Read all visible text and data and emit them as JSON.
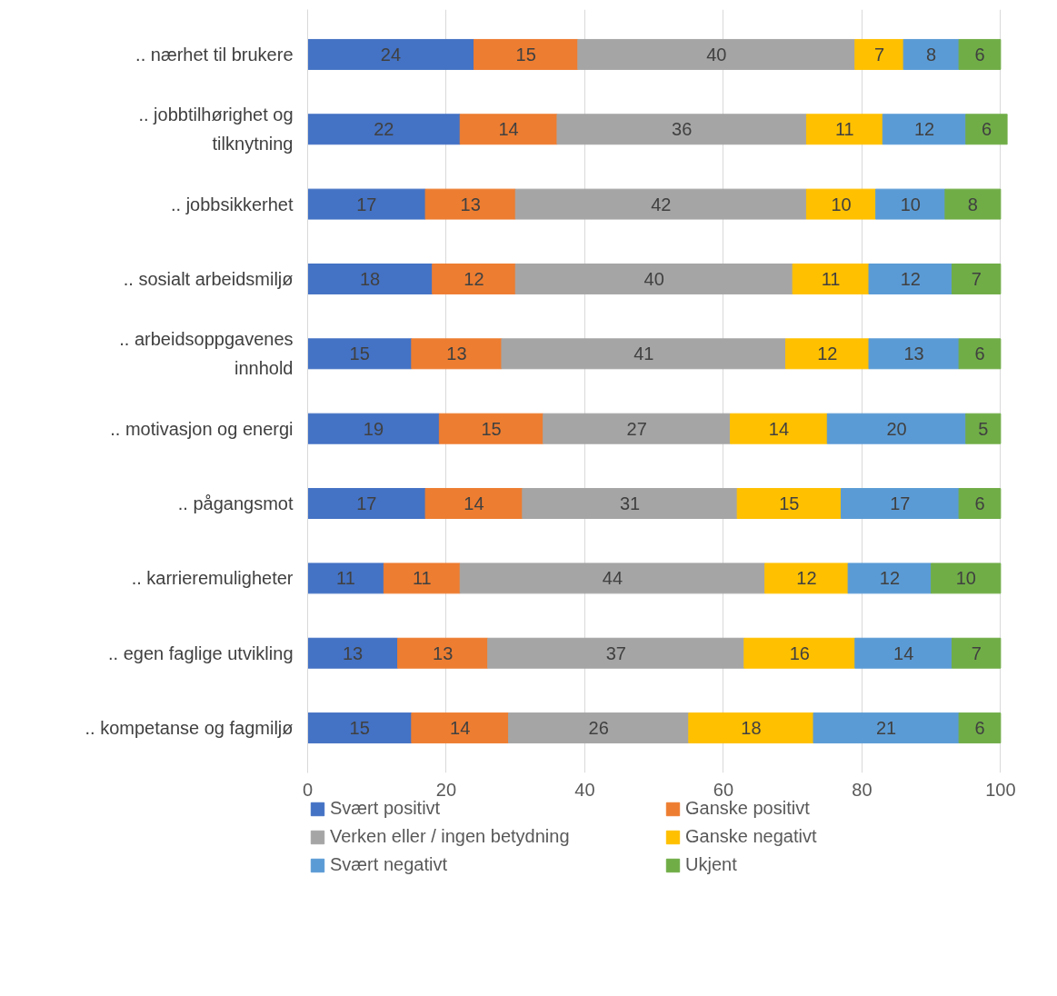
{
  "chart_data": {
    "type": "bar",
    "orientation": "horizontal",
    "stacked": true,
    "data_labels": true,
    "categories": [
      ".. nærhet til brukere",
      ".. jobbtilhørighet og\ntilknytning",
      ".. jobbsikkerhet",
      ".. sosialt arbeidsmiljø",
      ".. arbeidsoppgavenes\ninnhold",
      ".. motivasjon og energi",
      ".. pågangsmot",
      ".. karrieremuligheter",
      ".. egen faglige utvikling",
      ".. kompetanse og fagmiljø"
    ],
    "series": [
      {
        "name": "Svært positivt",
        "color": "#4472c4",
        "values": [
          24,
          22,
          17,
          18,
          15,
          19,
          17,
          11,
          13,
          15
        ]
      },
      {
        "name": "Ganske positivt",
        "color": "#ed7d31",
        "values": [
          15,
          14,
          13,
          12,
          13,
          15,
          14,
          11,
          13,
          14
        ]
      },
      {
        "name": "Verken eller / ingen betydning",
        "color": "#a5a5a5",
        "values": [
          40,
          36,
          42,
          40,
          41,
          27,
          31,
          44,
          37,
          26
        ]
      },
      {
        "name": "Ganske negativt",
        "color": "#ffc000",
        "values": [
          7,
          11,
          10,
          11,
          12,
          14,
          15,
          12,
          16,
          18
        ]
      },
      {
        "name": "Svært negativt",
        "color": "#5b9bd5",
        "values": [
          8,
          12,
          10,
          12,
          13,
          20,
          17,
          12,
          14,
          21
        ]
      },
      {
        "name": "Ukjent",
        "color": "#70ad47",
        "values": [
          6,
          6,
          8,
          7,
          6,
          5,
          6,
          10,
          7,
          6
        ]
      }
    ],
    "xlim": [
      0,
      101
    ],
    "xticks": [
      0,
      20,
      40,
      60,
      80,
      100
    ],
    "grid": "x",
    "legend": "bottom"
  }
}
